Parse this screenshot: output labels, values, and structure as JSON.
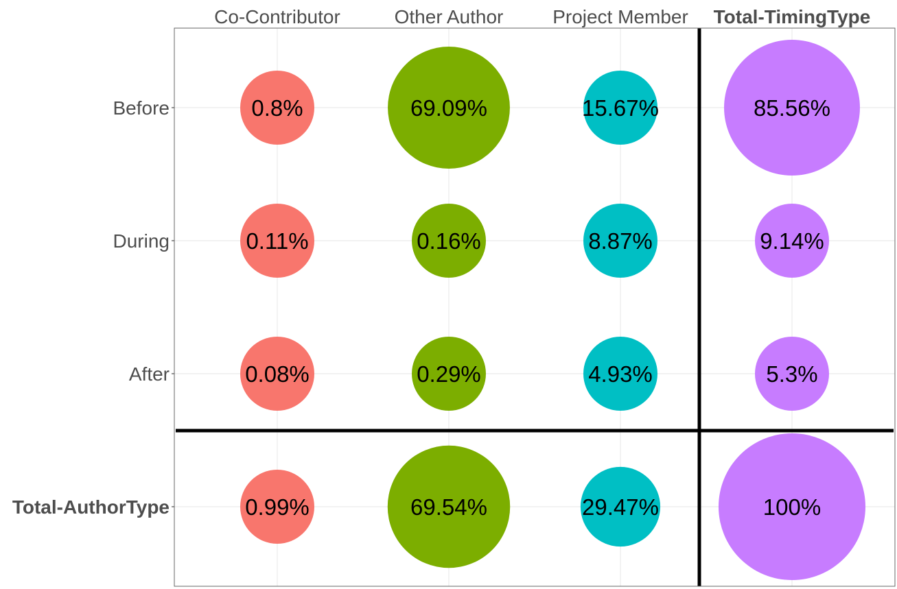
{
  "chart_data": {
    "type": "scatter",
    "subtype": "bubble-matrix",
    "title": "",
    "xlabel": "",
    "ylabel": "",
    "x_categories": [
      "Co-Contributor",
      "Other Author",
      "Project Member",
      "Total-TimingType"
    ],
    "y_categories": [
      "Before",
      "During",
      "After",
      "Total-AuthorType"
    ],
    "bold_categories": [
      "Total-TimingType",
      "Total-AuthorType"
    ],
    "x_axis_position": "top",
    "grid": true,
    "legend": "none",
    "series": [
      {
        "name": "Co-Contributor",
        "color": "#F8766D",
        "values": [
          0.8,
          0.11,
          0.08,
          0.99
        ],
        "labels": [
          "0.8%",
          "0.11%",
          "0.08%",
          "0.99%"
        ]
      },
      {
        "name": "Other Author",
        "color": "#7CAE00",
        "values": [
          69.09,
          0.16,
          0.29,
          69.54
        ],
        "labels": [
          "69.09%",
          "0.16%",
          "0.29%",
          "69.54%"
        ]
      },
      {
        "name": "Project Member",
        "color": "#00BFC4",
        "values": [
          15.67,
          8.87,
          4.93,
          29.47
        ],
        "labels": [
          "15.67%",
          "8.87%",
          "4.93%",
          "29.47%"
        ]
      },
      {
        "name": "Total-TimingType",
        "color": "#C77CFF",
        "values": [
          85.56,
          9.14,
          5.3,
          100
        ],
        "labels": [
          "85.56%",
          "9.14%",
          "5.3%",
          "100%"
        ]
      }
    ]
  }
}
